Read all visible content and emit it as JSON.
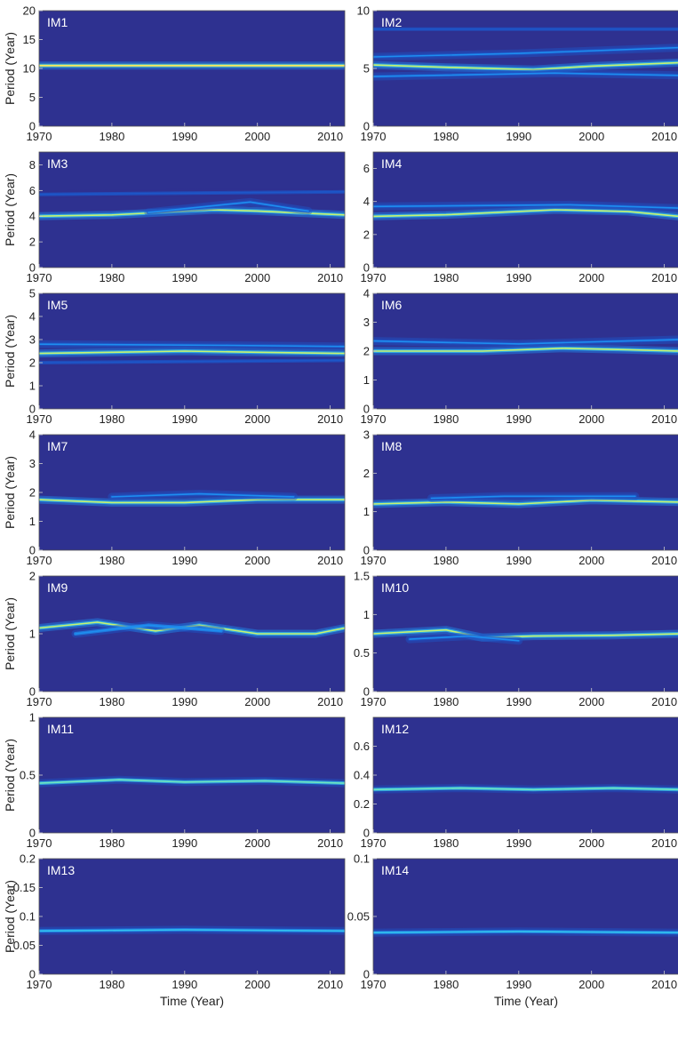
{
  "figure": {
    "background": "#ffffff",
    "plot_background": "#2e3190",
    "colormap": [
      "#2e3190",
      "#1d56c8",
      "#1e8ef0",
      "#33c6f0",
      "#6fe6c0",
      "#c8f270",
      "#ffe75a"
    ]
  },
  "chart_data": [
    {
      "type": "heatmap",
      "title": "IM1",
      "x": [
        1970,
        2012
      ],
      "ylim": [
        0,
        20
      ],
      "yticks": [
        0,
        5,
        10,
        15,
        20
      ],
      "xticks": [
        1970,
        1980,
        1990,
        2000,
        2010
      ],
      "ylabel": "Period (Year)",
      "xlabel": "",
      "ridges": [
        {
          "points": [
            [
              1970,
              10.5
            ],
            [
              1990,
              10.5
            ],
            [
              2012,
              10.5
            ]
          ],
          "intensity": 1.0
        }
      ]
    },
    {
      "type": "heatmap",
      "title": "IM2",
      "x": [
        1970,
        2012
      ],
      "ylim": [
        0,
        10
      ],
      "yticks": [
        0,
        5,
        10
      ],
      "xticks": [
        1970,
        1980,
        1990,
        2000,
        2010
      ],
      "ylabel": "",
      "xlabel": "",
      "ridges": [
        {
          "points": [
            [
              1970,
              5.3
            ],
            [
              1980,
              5.1
            ],
            [
              1992,
              4.9
            ],
            [
              2000,
              5.2
            ],
            [
              2012,
              5.5
            ]
          ],
          "intensity": 0.8
        },
        {
          "points": [
            [
              1970,
              6.0
            ],
            [
              1990,
              6.3
            ],
            [
              2012,
              6.8
            ]
          ],
          "intensity": 0.3
        },
        {
          "points": [
            [
              1970,
              4.3
            ],
            [
              1995,
              4.6
            ],
            [
              2012,
              4.4
            ]
          ],
          "intensity": 0.3
        },
        {
          "points": [
            [
              1970,
              8.4
            ],
            [
              2012,
              8.4
            ]
          ],
          "intensity": 0.2
        }
      ]
    },
    {
      "type": "heatmap",
      "title": "IM3",
      "x": [
        1970,
        2012
      ],
      "ylim": [
        0,
        9
      ],
      "yticks": [
        0,
        2,
        4,
        6,
        8
      ],
      "xticks": [
        1970,
        1980,
        1990,
        2000,
        2010
      ],
      "ylabel": "Period (Year)",
      "xlabel": "",
      "ridges": [
        {
          "points": [
            [
              1970,
              4.0
            ],
            [
              1980,
              4.1
            ],
            [
              1994,
              4.5
            ],
            [
              2000,
              4.4
            ],
            [
              2012,
              4.1
            ]
          ],
          "intensity": 0.85
        },
        {
          "points": [
            [
              1985,
              4.3
            ],
            [
              1999,
              5.1
            ],
            [
              2007,
              4.4
            ]
          ],
          "intensity": 0.35
        },
        {
          "points": [
            [
              1970,
              5.7
            ],
            [
              2012,
              5.9
            ]
          ],
          "intensity": 0.2
        }
      ]
    },
    {
      "type": "heatmap",
      "title": "IM4",
      "x": [
        1970,
        2012
      ],
      "ylim": [
        0,
        7
      ],
      "yticks": [
        0,
        2,
        4,
        6
      ],
      "xticks": [
        1970,
        1980,
        1990,
        2000,
        2010
      ],
      "ylabel": "",
      "xlabel": "",
      "ridges": [
        {
          "points": [
            [
              1970,
              3.1
            ],
            [
              1980,
              3.2
            ],
            [
              1995,
              3.5
            ],
            [
              2005,
              3.4
            ],
            [
              2012,
              3.1
            ]
          ],
          "intensity": 0.75
        },
        {
          "points": [
            [
              1970,
              3.7
            ],
            [
              1997,
              3.8
            ],
            [
              2012,
              3.6
            ]
          ],
          "intensity": 0.3
        }
      ]
    },
    {
      "type": "heatmap",
      "title": "IM5",
      "x": [
        1970,
        2012
      ],
      "ylim": [
        0,
        5
      ],
      "yticks": [
        0,
        1,
        2,
        3,
        4,
        5
      ],
      "xticks": [
        1970,
        1980,
        1990,
        2000,
        2010
      ],
      "ylabel": "Period (Year)",
      "xlabel": "",
      "ridges": [
        {
          "points": [
            [
              1970,
              2.4
            ],
            [
              1980,
              2.45
            ],
            [
              1990,
              2.5
            ],
            [
              2000,
              2.45
            ],
            [
              2012,
              2.4
            ]
          ],
          "intensity": 0.85
        },
        {
          "points": [
            [
              1970,
              2.8
            ],
            [
              1996,
              2.75
            ],
            [
              2012,
              2.7
            ]
          ],
          "intensity": 0.3
        },
        {
          "points": [
            [
              1970,
              2.0
            ],
            [
              2012,
              2.1
            ]
          ],
          "intensity": 0.2
        }
      ]
    },
    {
      "type": "heatmap",
      "title": "IM6",
      "x": [
        1970,
        2012
      ],
      "ylim": [
        0,
        4
      ],
      "yticks": [
        0,
        1,
        2,
        3,
        4
      ],
      "xticks": [
        1970,
        1980,
        1990,
        2000,
        2010
      ],
      "ylabel": "",
      "xlabel": "",
      "ridges": [
        {
          "points": [
            [
              1970,
              2.0
            ],
            [
              1985,
              2.0
            ],
            [
              1996,
              2.1
            ],
            [
              2005,
              2.05
            ],
            [
              2012,
              2.0
            ]
          ],
          "intensity": 0.8
        },
        {
          "points": [
            [
              1970,
              2.35
            ],
            [
              1990,
              2.25
            ],
            [
              2012,
              2.4
            ]
          ],
          "intensity": 0.3
        }
      ]
    },
    {
      "type": "heatmap",
      "title": "IM7",
      "x": [
        1970,
        2012
      ],
      "ylim": [
        0,
        4
      ],
      "yticks": [
        0,
        1,
        2,
        3,
        4
      ],
      "xticks": [
        1970,
        1980,
        1990,
        2000,
        2010
      ],
      "ylabel": "Period (Year)",
      "xlabel": "",
      "ridges": [
        {
          "points": [
            [
              1970,
              1.75
            ],
            [
              1980,
              1.65
            ],
            [
              1990,
              1.65
            ],
            [
              2000,
              1.75
            ],
            [
              2012,
              1.75
            ]
          ],
          "intensity": 0.8
        },
        {
          "points": [
            [
              1980,
              1.85
            ],
            [
              1992,
              1.95
            ],
            [
              2005,
              1.85
            ]
          ],
          "intensity": 0.25
        }
      ]
    },
    {
      "type": "heatmap",
      "title": "IM8",
      "x": [
        1970,
        2012
      ],
      "ylim": [
        0,
        3
      ],
      "yticks": [
        0,
        1,
        2,
        3
      ],
      "xticks": [
        1970,
        1980,
        1990,
        2000,
        2010
      ],
      "ylabel": "",
      "xlabel": "",
      "ridges": [
        {
          "points": [
            [
              1970,
              1.2
            ],
            [
              1980,
              1.25
            ],
            [
              1990,
              1.2
            ],
            [
              2000,
              1.3
            ],
            [
              2012,
              1.25
            ]
          ],
          "intensity": 0.75
        },
        {
          "points": [
            [
              1978,
              1.35
            ],
            [
              1988,
              1.4
            ],
            [
              2006,
              1.4
            ]
          ],
          "intensity": 0.3
        }
      ]
    },
    {
      "type": "heatmap",
      "title": "IM9",
      "x": [
        1970,
        2012
      ],
      "ylim": [
        0,
        2
      ],
      "yticks": [
        0,
        1,
        2
      ],
      "xticks": [
        1970,
        1980,
        1990,
        2000,
        2010
      ],
      "ylabel": "Period (Year)",
      "xlabel": "",
      "ridges": [
        {
          "points": [
            [
              1970,
              1.1
            ],
            [
              1978,
              1.2
            ],
            [
              1986,
              1.05
            ],
            [
              1992,
              1.15
            ],
            [
              2000,
              1.0
            ],
            [
              2008,
              1.0
            ],
            [
              2012,
              1.1
            ]
          ],
          "intensity": 0.85
        },
        {
          "points": [
            [
              1975,
              1.0
            ],
            [
              1985,
              1.15
            ],
            [
              1995,
              1.05
            ]
          ],
          "intensity": 0.4
        }
      ]
    },
    {
      "type": "heatmap",
      "title": "IM10",
      "x": [
        1970,
        2012
      ],
      "ylim": [
        0,
        1.5
      ],
      "yticks": [
        0,
        0.5,
        1,
        1.5
      ],
      "xticks": [
        1970,
        1980,
        1990,
        2000,
        2010
      ],
      "ylabel": "",
      "xlabel": "",
      "ridges": [
        {
          "points": [
            [
              1970,
              0.75
            ],
            [
              1980,
              0.8
            ],
            [
              1985,
              0.7
            ],
            [
              1992,
              0.72
            ],
            [
              2003,
              0.73
            ],
            [
              2012,
              0.75
            ]
          ],
          "intensity": 0.75
        },
        {
          "points": [
            [
              1975,
              0.68
            ],
            [
              1983,
              0.72
            ],
            [
              1990,
              0.66
            ]
          ],
          "intensity": 0.3
        }
      ]
    },
    {
      "type": "heatmap",
      "title": "IM11",
      "x": [
        1970,
        2012
      ],
      "ylim": [
        0,
        1
      ],
      "yticks": [
        0,
        0.5,
        1
      ],
      "xticks": [
        1970,
        1980,
        1990,
        2000,
        2010
      ],
      "ylabel": "Period (Year)",
      "xlabel": "",
      "ridges": [
        {
          "points": [
            [
              1970,
              0.43
            ],
            [
              1981,
              0.46
            ],
            [
              1990,
              0.44
            ],
            [
              2001,
              0.45
            ],
            [
              2012,
              0.43
            ]
          ],
          "intensity": 0.7
        }
      ]
    },
    {
      "type": "heatmap",
      "title": "IM12",
      "x": [
        1970,
        2012
      ],
      "ylim": [
        0,
        0.8
      ],
      "yticks": [
        0,
        0.2,
        0.4,
        0.6
      ],
      "xticks": [
        1970,
        1980,
        1990,
        2000,
        2010
      ],
      "ylabel": "",
      "xlabel": "",
      "ridges": [
        {
          "points": [
            [
              1970,
              0.3
            ],
            [
              1982,
              0.31
            ],
            [
              1992,
              0.3
            ],
            [
              2003,
              0.31
            ],
            [
              2012,
              0.3
            ]
          ],
          "intensity": 0.65
        }
      ]
    },
    {
      "type": "heatmap",
      "title": "IM13",
      "x": [
        1970,
        2012
      ],
      "ylim": [
        0,
        0.2
      ],
      "yticks": [
        0,
        0.05,
        0.1,
        0.15,
        0.2
      ],
      "xticks": [
        1970,
        1980,
        1990,
        2000,
        2010
      ],
      "ylabel": "Period (Year)",
      "xlabel": "Time (Year)",
      "ridges": [
        {
          "points": [
            [
              1970,
              0.075
            ],
            [
              1990,
              0.077
            ],
            [
              2012,
              0.075
            ]
          ],
          "intensity": 0.55
        }
      ]
    },
    {
      "type": "heatmap",
      "title": "IM14",
      "x": [
        1970,
        2012
      ],
      "ylim": [
        0,
        0.1
      ],
      "yticks": [
        0,
        0.05,
        0.1
      ],
      "xticks": [
        1970,
        1980,
        1990,
        2000,
        2010
      ],
      "ylabel": "",
      "xlabel": "Time (Year)",
      "ridges": [
        {
          "points": [
            [
              1970,
              0.036
            ],
            [
              1990,
              0.037
            ],
            [
              2012,
              0.036
            ]
          ],
          "intensity": 0.5
        }
      ]
    }
  ]
}
